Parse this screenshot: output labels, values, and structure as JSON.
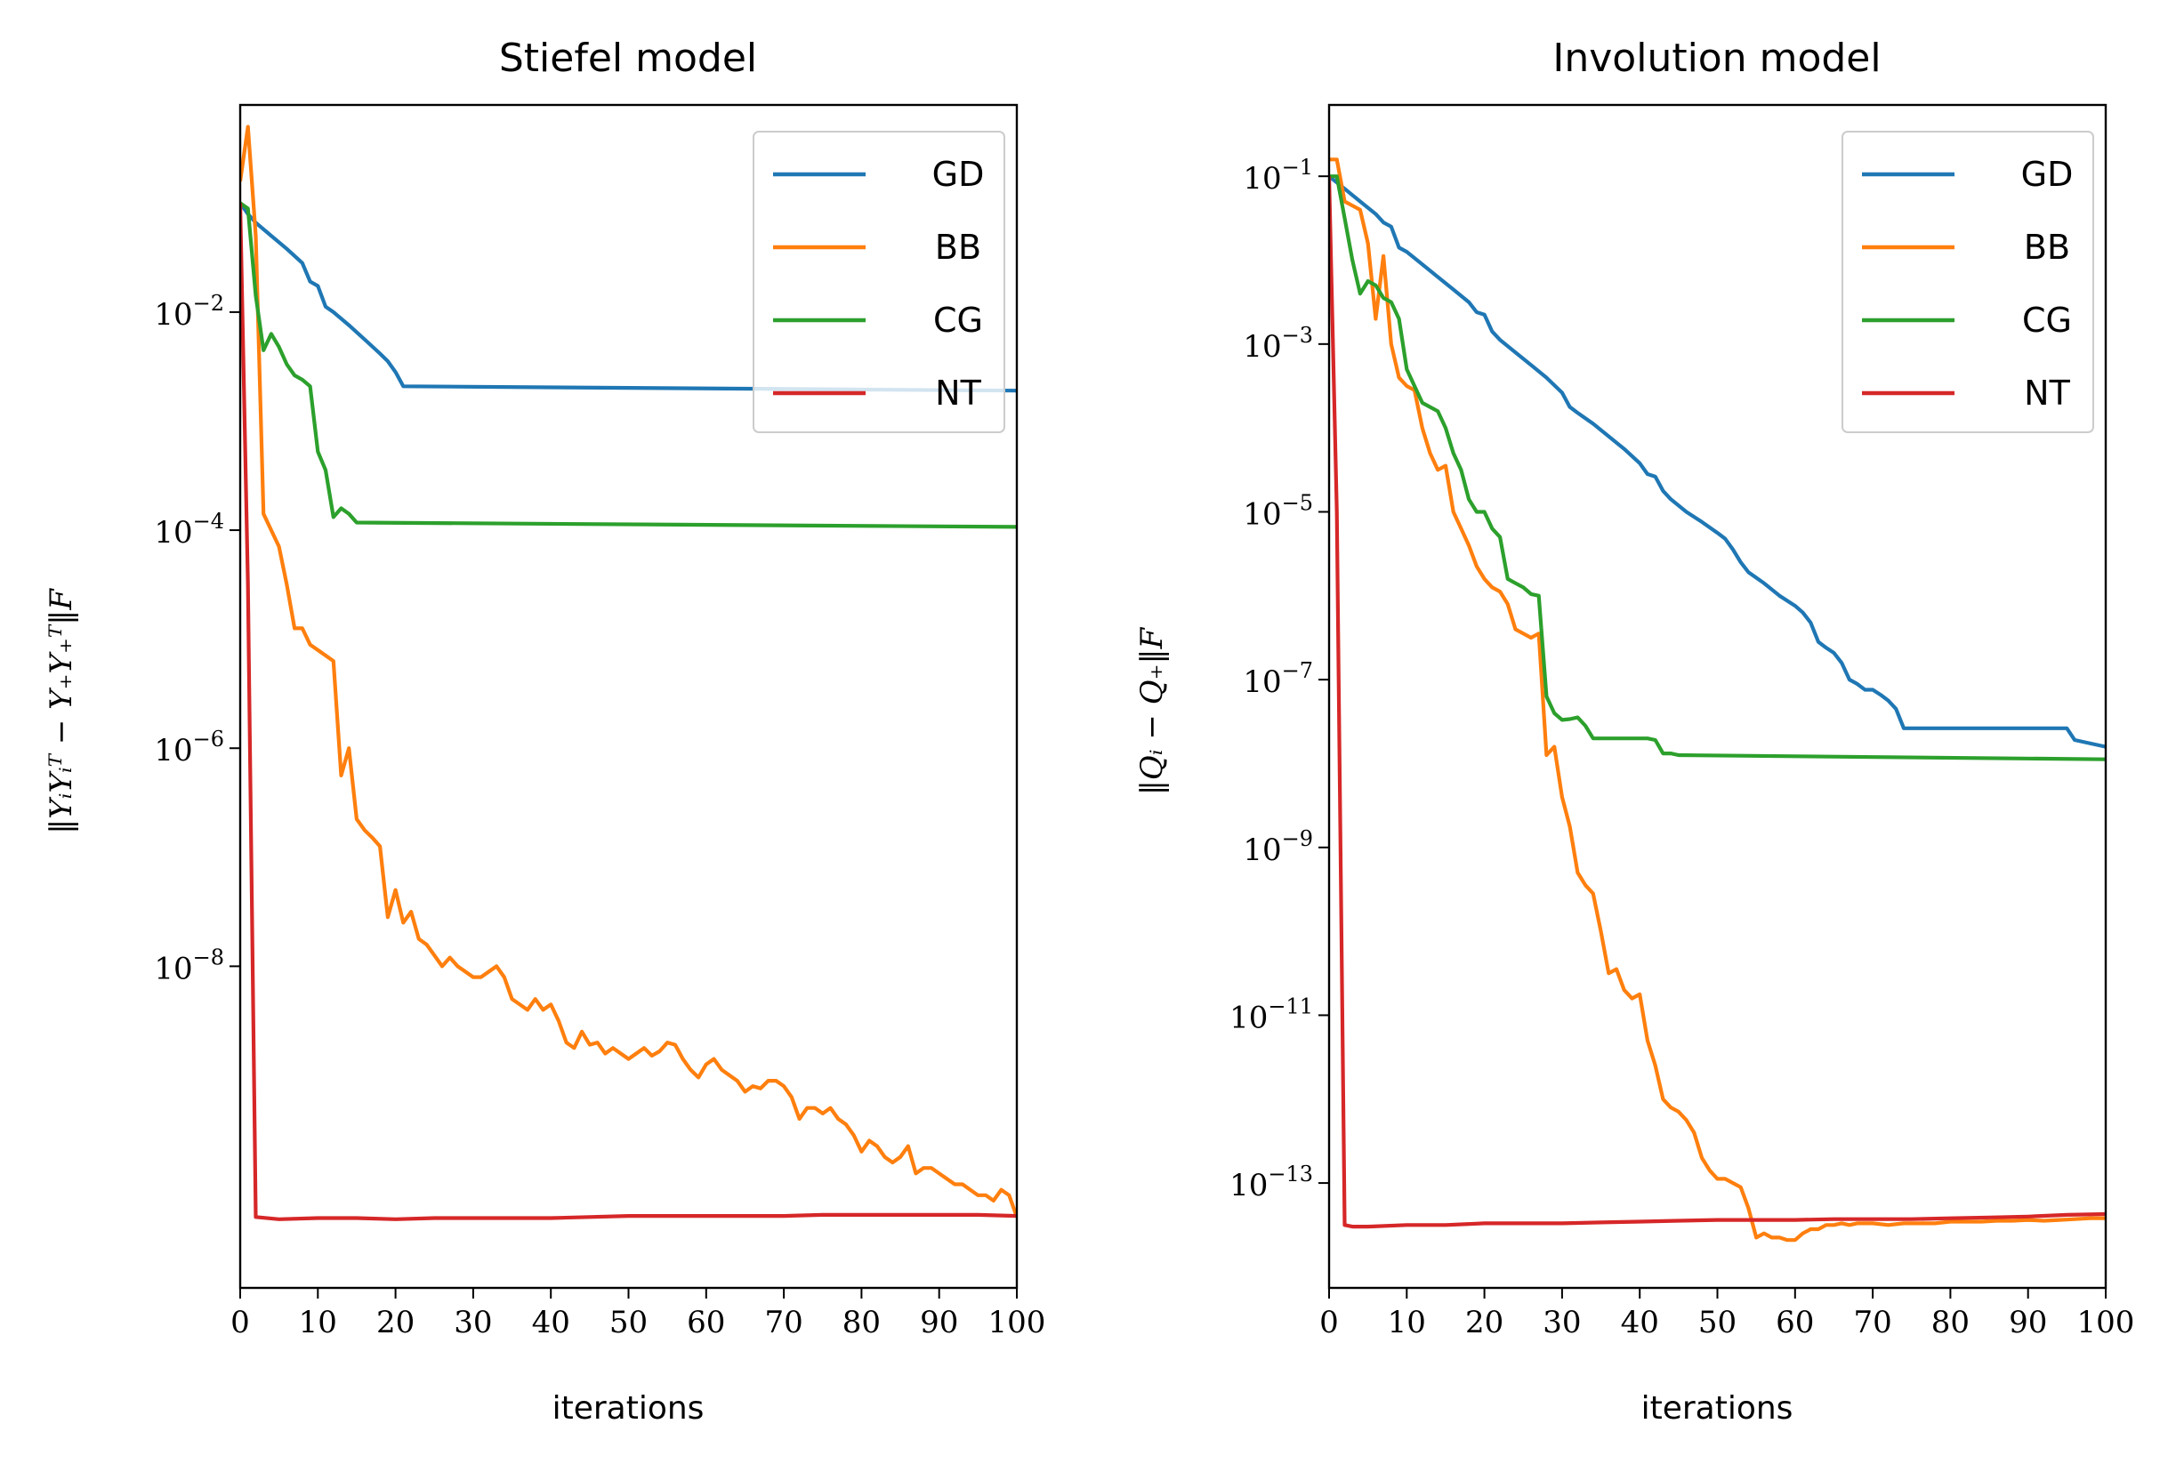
{
  "chart_data": [
    {
      "type": "line",
      "title": "Stiefel model",
      "xlabel": "iterations",
      "ylabel": "‖YᵢYᵢᵀ − Y₊Y₊ᵀ‖F",
      "yscale": "log",
      "xlim": [
        0,
        100
      ],
      "ylim_log10": [
        -10.95,
        -0.1
      ],
      "xticks": [
        0,
        10,
        20,
        30,
        40,
        50,
        60,
        70,
        80,
        90,
        100
      ],
      "yticks": [
        {
          "exp": -2,
          "label": "10",
          "sup": "−2"
        },
        {
          "exp": -4,
          "label": "10",
          "sup": "−4"
        },
        {
          "exp": -6,
          "label": "10",
          "sup": "−6"
        },
        {
          "exp": -8,
          "label": "10",
          "sup": "−8"
        }
      ],
      "legend_position": "top-right",
      "series": [
        {
          "name": "GD",
          "color": "#1f77b4",
          "x": [
            0,
            1,
            2,
            4,
            6,
            8,
            9,
            10,
            11,
            12,
            14,
            16,
            18,
            19,
            20,
            21,
            100
          ],
          "log10": [
            -1.0,
            -1.1,
            -1.18,
            -1.3,
            -1.42,
            -1.55,
            -1.72,
            -1.76,
            -1.95,
            -2.0,
            -2.12,
            -2.25,
            -2.38,
            -2.45,
            -2.55,
            -2.68,
            -2.72
          ]
        },
        {
          "name": "BB",
          "color": "#ff7f0e",
          "x": [
            0,
            1,
            2,
            3,
            4,
            5,
            6,
            7,
            8,
            9,
            10,
            11,
            12,
            13,
            14,
            15,
            16,
            17,
            18,
            19,
            20,
            21,
            22,
            23,
            24,
            25,
            26,
            27,
            28,
            29,
            30,
            31,
            32,
            33,
            34,
            35,
            36,
            37,
            38,
            39,
            40,
            41,
            42,
            43,
            44,
            45,
            46,
            47,
            48,
            49,
            50,
            51,
            52,
            53,
            54,
            55,
            56,
            57,
            58,
            59,
            60,
            61,
            62,
            63,
            64,
            65,
            66,
            67,
            68,
            69,
            70,
            71,
            72,
            73,
            74,
            75,
            76,
            77,
            78,
            79,
            80,
            81,
            82,
            83,
            84,
            85,
            86,
            87,
            88,
            89,
            90,
            91,
            92,
            93,
            94,
            95,
            96,
            97,
            98,
            99,
            100
          ],
          "log10": [
            -0.8,
            -0.3,
            -1.3,
            -3.85,
            -4.0,
            -4.15,
            -4.5,
            -4.9,
            -4.9,
            -5.05,
            -5.1,
            -5.15,
            -5.2,
            -6.25,
            -6.0,
            -6.65,
            -6.75,
            -6.82,
            -6.9,
            -7.55,
            -7.3,
            -7.6,
            -7.5,
            -7.75,
            -7.8,
            -7.9,
            -8.0,
            -7.92,
            -8.0,
            -8.05,
            -8.1,
            -8.1,
            -8.05,
            -8.0,
            -8.1,
            -8.3,
            -8.35,
            -8.4,
            -8.3,
            -8.4,
            -8.35,
            -8.5,
            -8.7,
            -8.75,
            -8.6,
            -8.72,
            -8.7,
            -8.8,
            -8.75,
            -8.8,
            -8.85,
            -8.8,
            -8.75,
            -8.82,
            -8.78,
            -8.7,
            -8.72,
            -8.85,
            -8.95,
            -9.02,
            -8.9,
            -8.85,
            -8.95,
            -9.0,
            -9.05,
            -9.15,
            -9.1,
            -9.12,
            -9.05,
            -9.05,
            -9.1,
            -9.2,
            -9.4,
            -9.3,
            -9.3,
            -9.35,
            -9.3,
            -9.4,
            -9.45,
            -9.55,
            -9.7,
            -9.6,
            -9.65,
            -9.75,
            -9.8,
            -9.75,
            -9.65,
            -9.9,
            -9.85,
            -9.85,
            -9.9,
            -9.95,
            -10.0,
            -10.0,
            -10.05,
            -10.1,
            -10.1,
            -10.15,
            -10.05,
            -10.1,
            -10.3
          ]
        },
        {
          "name": "CG",
          "color": "#2ca02c",
          "x": [
            0,
            1,
            2,
            3,
            4,
            5,
            6,
            7,
            8,
            9,
            10,
            11,
            12,
            13,
            14,
            15,
            100
          ],
          "log10": [
            -1.0,
            -1.05,
            -1.85,
            -2.35,
            -2.2,
            -2.32,
            -2.48,
            -2.58,
            -2.62,
            -2.68,
            -3.28,
            -3.45,
            -3.88,
            -3.8,
            -3.85,
            -3.93,
            -3.97
          ]
        },
        {
          "name": "NT",
          "color": "#d62728",
          "x": [
            0,
            1,
            2,
            5,
            10,
            15,
            20,
            25,
            30,
            35,
            40,
            45,
            50,
            55,
            60,
            65,
            70,
            75,
            80,
            85,
            90,
            95,
            100
          ],
          "log10": [
            -1.0,
            -4.5,
            -10.3,
            -10.32,
            -10.31,
            -10.31,
            -10.32,
            -10.31,
            -10.31,
            -10.31,
            -10.31,
            -10.3,
            -10.29,
            -10.29,
            -10.29,
            -10.29,
            -10.29,
            -10.28,
            -10.28,
            -10.28,
            -10.28,
            -10.28,
            -10.29
          ]
        }
      ]
    },
    {
      "type": "line",
      "title": "Involution model",
      "xlabel": "iterations",
      "ylabel": "‖Qᵢ − Q₊‖F",
      "yscale": "log",
      "xlim": [
        0,
        100
      ],
      "ylim_log10": [
        -14.25,
        -0.15
      ],
      "xticks": [
        0,
        10,
        20,
        30,
        40,
        50,
        60,
        70,
        80,
        90,
        100
      ],
      "yticks": [
        {
          "exp": -1,
          "label": "10",
          "sup": "−1"
        },
        {
          "exp": -3,
          "label": "10",
          "sup": "−3"
        },
        {
          "exp": -5,
          "label": "10",
          "sup": "−5"
        },
        {
          "exp": -7,
          "label": "10",
          "sup": "−7"
        },
        {
          "exp": -9,
          "label": "10",
          "sup": "−9"
        },
        {
          "exp": -11,
          "label": "10",
          "sup": "−11"
        },
        {
          "exp": -13,
          "label": "10",
          "sup": "−13"
        }
      ],
      "legend_position": "top-right",
      "series": [
        {
          "name": "GD",
          "color": "#1f77b4",
          "x": [
            0,
            2,
            4,
            6,
            7,
            8,
            9,
            10,
            12,
            14,
            16,
            18,
            19,
            20,
            21,
            22,
            24,
            26,
            28,
            30,
            31,
            32,
            34,
            36,
            38,
            40,
            41,
            42,
            43,
            44,
            46,
            48,
            50,
            51,
            52,
            53,
            54,
            56,
            58,
            60,
            61,
            62,
            63,
            64,
            65,
            66,
            67,
            68,
            69,
            70,
            71,
            72,
            73,
            74,
            80,
            95,
            96,
            100
          ],
          "log10": [
            -1.0,
            -1.15,
            -1.3,
            -1.45,
            -1.55,
            -1.6,
            -1.85,
            -1.9,
            -2.05,
            -2.2,
            -2.35,
            -2.5,
            -2.62,
            -2.65,
            -2.85,
            -2.95,
            -3.1,
            -3.25,
            -3.4,
            -3.58,
            -3.75,
            -3.82,
            -3.95,
            -4.1,
            -4.25,
            -4.42,
            -4.55,
            -4.58,
            -4.75,
            -4.85,
            -5.0,
            -5.12,
            -5.25,
            -5.32,
            -5.45,
            -5.6,
            -5.72,
            -5.85,
            -6.0,
            -6.12,
            -6.2,
            -6.32,
            -6.55,
            -6.62,
            -6.68,
            -6.8,
            -7.0,
            -7.05,
            -7.12,
            -7.12,
            -7.18,
            -7.25,
            -7.35,
            -7.58,
            -7.58,
            -7.58,
            -7.72,
            -7.8
          ]
        },
        {
          "name": "BB",
          "color": "#ff7f0e",
          "x": [
            0,
            1,
            2,
            3,
            4,
            5,
            6,
            7,
            8,
            9,
            10,
            11,
            12,
            13,
            14,
            15,
            16,
            17,
            18,
            19,
            20,
            21,
            22,
            23,
            24,
            25,
            26,
            27,
            28,
            29,
            30,
            31,
            32,
            33,
            34,
            35,
            36,
            37,
            38,
            39,
            40,
            41,
            42,
            43,
            44,
            45,
            46,
            47,
            48,
            49,
            50,
            51,
            52,
            53,
            54,
            55,
            56,
            57,
            58,
            59,
            60,
            61,
            62,
            63,
            64,
            65,
            66,
            67,
            68,
            69,
            70,
            72,
            74,
            76,
            78,
            80,
            82,
            84,
            86,
            88,
            90,
            92,
            94,
            96,
            98,
            100
          ],
          "log10": [
            -0.8,
            -0.8,
            -1.3,
            -1.35,
            -1.4,
            -1.8,
            -2.7,
            -1.95,
            -3.0,
            -3.4,
            -3.5,
            -3.55,
            -4.0,
            -4.3,
            -4.5,
            -4.45,
            -5.0,
            -5.2,
            -5.4,
            -5.65,
            -5.8,
            -5.9,
            -5.95,
            -6.1,
            -6.4,
            -6.45,
            -6.5,
            -6.45,
            -7.9,
            -7.8,
            -8.4,
            -8.75,
            -9.3,
            -9.45,
            -9.55,
            -10.0,
            -10.5,
            -10.45,
            -10.7,
            -10.8,
            -10.75,
            -11.3,
            -11.6,
            -12.0,
            -12.1,
            -12.15,
            -12.25,
            -12.4,
            -12.7,
            -12.85,
            -12.95,
            -12.95,
            -13.0,
            -13.05,
            -13.3,
            -13.65,
            -13.6,
            -13.65,
            -13.65,
            -13.68,
            -13.68,
            -13.6,
            -13.55,
            -13.55,
            -13.5,
            -13.5,
            -13.48,
            -13.5,
            -13.48,
            -13.48,
            -13.48,
            -13.5,
            -13.48,
            -13.48,
            -13.48,
            -13.46,
            -13.46,
            -13.46,
            -13.45,
            -13.45,
            -13.44,
            -13.45,
            -13.44,
            -13.43,
            -13.42,
            -13.42
          ]
        },
        {
          "name": "CG",
          "color": "#2ca02c",
          "x": [
            0,
            1,
            2,
            3,
            4,
            5,
            6,
            7,
            8,
            9,
            10,
            11,
            12,
            13,
            14,
            15,
            16,
            17,
            18,
            19,
            20,
            21,
            22,
            23,
            24,
            25,
            26,
            27,
            28,
            29,
            30,
            31,
            32,
            33,
            34,
            35,
            40,
            41,
            42,
            43,
            44,
            45,
            100
          ],
          "log10": [
            -1.0,
            -1.0,
            -1.5,
            -2.0,
            -2.4,
            -2.25,
            -2.3,
            -2.45,
            -2.5,
            -2.7,
            -3.3,
            -3.5,
            -3.7,
            -3.75,
            -3.8,
            -4.0,
            -4.3,
            -4.5,
            -4.85,
            -5.0,
            -5.0,
            -5.2,
            -5.3,
            -5.8,
            -5.85,
            -5.9,
            -5.98,
            -6.0,
            -7.2,
            -7.4,
            -7.48,
            -7.47,
            -7.45,
            -7.55,
            -7.7,
            -7.7,
            -7.7,
            -7.7,
            -7.72,
            -7.88,
            -7.88,
            -7.9,
            -7.95
          ]
        },
        {
          "name": "NT",
          "color": "#d62728",
          "x": [
            0,
            1,
            2,
            3,
            5,
            10,
            15,
            20,
            25,
            30,
            35,
            40,
            45,
            50,
            55,
            60,
            65,
            70,
            75,
            80,
            85,
            90,
            95,
            100
          ],
          "log10": [
            -1.0,
            -5.0,
            -13.5,
            -13.52,
            -13.52,
            -13.5,
            -13.5,
            -13.48,
            -13.48,
            -13.48,
            -13.47,
            -13.46,
            -13.45,
            -13.44,
            -13.44,
            -13.44,
            -13.43,
            -13.43,
            -13.43,
            -13.42,
            -13.41,
            -13.4,
            -13.38,
            -13.37
          ]
        }
      ]
    }
  ]
}
